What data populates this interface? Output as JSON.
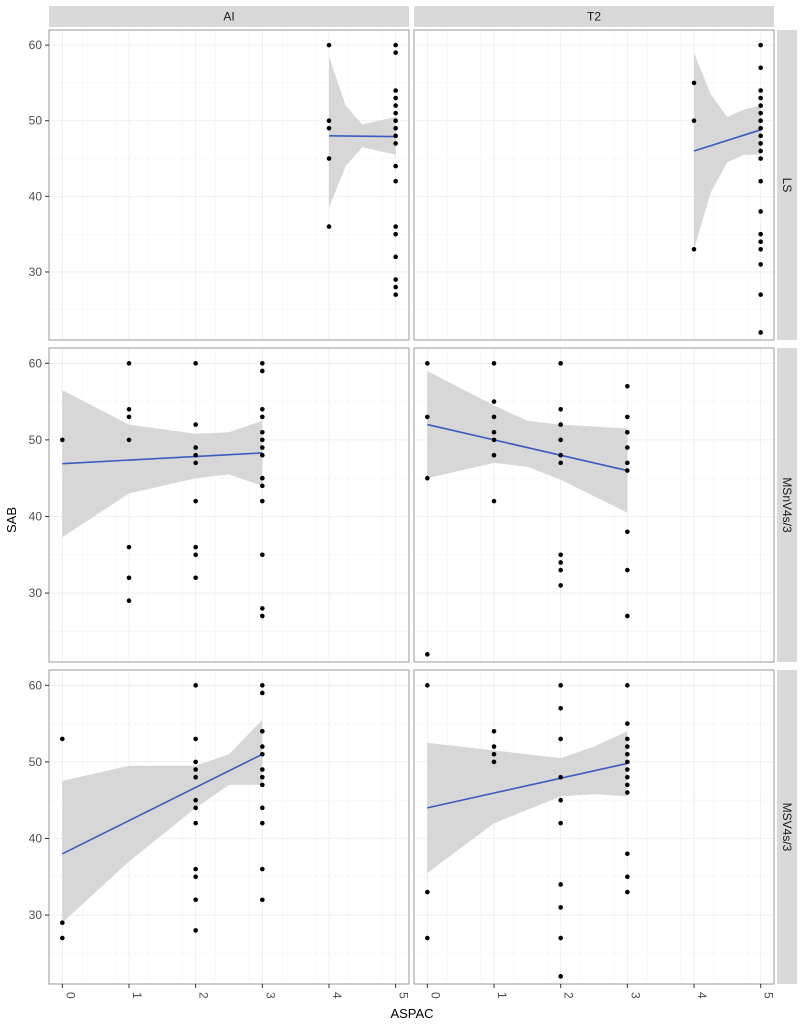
{
  "chart_data": {
    "type": "scatter",
    "subtype": "faceted scatter with linear fit and confidence band",
    "xlabel": "ASPAC",
    "ylabel": "SAB",
    "xlim": [
      -0.2,
      5.2
    ],
    "ylim": [
      21,
      62
    ],
    "x_ticks": [
      0,
      1,
      2,
      3,
      4,
      5
    ],
    "y_ticks": [
      30,
      40,
      50,
      60
    ],
    "col_facets": [
      "AI",
      "T2"
    ],
    "row_facets": [
      "LS",
      "MSnV4s/3",
      "MSV4s/3"
    ],
    "colors": {
      "points": "#000000",
      "fit_line": "#3b5bbf",
      "band": "#d3d3d3",
      "strip": "#d9d9d9",
      "grid": "#ebebeb"
    },
    "panels": [
      {
        "row": "LS",
        "col": "AI",
        "points": [
          [
            4,
            60
          ],
          [
            4,
            50
          ],
          [
            4,
            49
          ],
          [
            4,
            45
          ],
          [
            4,
            36
          ],
          [
            5,
            60
          ],
          [
            5,
            59
          ],
          [
            5,
            54
          ],
          [
            5,
            53
          ],
          [
            5,
            52
          ],
          [
            5,
            51
          ],
          [
            5,
            50
          ],
          [
            5,
            49
          ],
          [
            5,
            48
          ],
          [
            5,
            47
          ],
          [
            5,
            44
          ],
          [
            5,
            42
          ],
          [
            5,
            36
          ],
          [
            5,
            35
          ],
          [
            5,
            32
          ],
          [
            5,
            29
          ],
          [
            5,
            28
          ],
          [
            5,
            27
          ]
        ],
        "fit": [
          [
            4,
            48.0
          ],
          [
            5,
            47.9
          ]
        ],
        "band": [
          [
            4,
            38.5,
            58.5
          ],
          [
            4.25,
            44.0,
            52.0
          ],
          [
            4.5,
            46.5,
            49.5
          ],
          [
            4.75,
            46.0,
            50.0
          ],
          [
            5,
            45.5,
            50.5
          ]
        ]
      },
      {
        "row": "LS",
        "col": "T2",
        "points": [
          [
            4,
            55
          ],
          [
            4,
            50
          ],
          [
            4,
            33
          ],
          [
            5,
            60
          ],
          [
            5,
            57
          ],
          [
            5,
            54
          ],
          [
            5,
            53
          ],
          [
            5,
            52
          ],
          [
            5,
            51
          ],
          [
            5,
            50
          ],
          [
            5,
            49
          ],
          [
            5,
            48
          ],
          [
            5,
            47
          ],
          [
            5,
            46
          ],
          [
            5,
            45
          ],
          [
            5,
            42
          ],
          [
            5,
            38
          ],
          [
            5,
            35
          ],
          [
            5,
            34
          ],
          [
            5,
            33
          ],
          [
            5,
            31
          ],
          [
            5,
            27
          ],
          [
            5,
            22
          ]
        ],
        "fit": [
          [
            4,
            46.0
          ],
          [
            5,
            48.8
          ]
        ],
        "band": [
          [
            4,
            33.0,
            59.0
          ],
          [
            4.25,
            40.5,
            53.5
          ],
          [
            4.5,
            44.5,
            50.5
          ],
          [
            4.75,
            45.5,
            51.5
          ],
          [
            5,
            45.5,
            52.0
          ]
        ]
      },
      {
        "row": "MSnV4s/3",
        "col": "AI",
        "points": [
          [
            0,
            50
          ],
          [
            1,
            60
          ],
          [
            1,
            54
          ],
          [
            1,
            53
          ],
          [
            1,
            50
          ],
          [
            1,
            36
          ],
          [
            1,
            32
          ],
          [
            1,
            29
          ],
          [
            2,
            60
          ],
          [
            2,
            52
          ],
          [
            2,
            49
          ],
          [
            2,
            48
          ],
          [
            2,
            47
          ],
          [
            2,
            42
          ],
          [
            2,
            36
          ],
          [
            2,
            35
          ],
          [
            2,
            32
          ],
          [
            3,
            60
          ],
          [
            3,
            59
          ],
          [
            3,
            54
          ],
          [
            3,
            53
          ],
          [
            3,
            51
          ],
          [
            3,
            50
          ],
          [
            3,
            49
          ],
          [
            3,
            48
          ],
          [
            3,
            45
          ],
          [
            3,
            44
          ],
          [
            3,
            42
          ],
          [
            3,
            35
          ],
          [
            3,
            28
          ],
          [
            3,
            27
          ]
        ],
        "fit": [
          [
            0,
            46.9
          ],
          [
            3,
            48.3
          ]
        ],
        "band": [
          [
            0,
            37.3,
            56.5
          ],
          [
            1,
            43.0,
            52.0
          ],
          [
            2,
            45.0,
            50.8
          ],
          [
            2.5,
            45.5,
            51.0
          ],
          [
            3,
            44.0,
            52.5
          ]
        ]
      },
      {
        "row": "MSnV4s/3",
        "col": "T2",
        "points": [
          [
            0,
            60
          ],
          [
            0,
            53
          ],
          [
            0,
            45
          ],
          [
            0,
            22
          ],
          [
            1,
            60
          ],
          [
            1,
            55
          ],
          [
            1,
            53
          ],
          [
            1,
            51
          ],
          [
            1,
            50
          ],
          [
            1,
            48
          ],
          [
            1,
            42
          ],
          [
            2,
            60
          ],
          [
            2,
            54
          ],
          [
            2,
            52
          ],
          [
            2,
            50
          ],
          [
            2,
            48
          ],
          [
            2,
            47
          ],
          [
            2,
            35
          ],
          [
            2,
            34
          ],
          [
            2,
            33
          ],
          [
            2,
            31
          ],
          [
            3,
            57
          ],
          [
            3,
            53
          ],
          [
            3,
            51
          ],
          [
            3,
            49
          ],
          [
            3,
            47
          ],
          [
            3,
            46
          ],
          [
            3,
            38
          ],
          [
            3,
            33
          ],
          [
            3,
            27
          ]
        ],
        "fit": [
          [
            0,
            52.0
          ],
          [
            3,
            46.0
          ]
        ],
        "band": [
          [
            0,
            45.0,
            59.0
          ],
          [
            1,
            47.0,
            54.5
          ],
          [
            1.5,
            46.5,
            52.5
          ],
          [
            2,
            44.8,
            52.0
          ],
          [
            3,
            40.5,
            51.5
          ]
        ]
      },
      {
        "row": "MSV4s/3",
        "col": "AI",
        "points": [
          [
            0,
            53
          ],
          [
            0,
            29
          ],
          [
            0,
            27
          ],
          [
            2,
            60
          ],
          [
            2,
            53
          ],
          [
            2,
            50
          ],
          [
            2,
            49
          ],
          [
            2,
            48
          ],
          [
            2,
            45
          ],
          [
            2,
            44
          ],
          [
            2,
            42
          ],
          [
            2,
            36
          ],
          [
            2,
            35
          ],
          [
            2,
            32
          ],
          [
            2,
            28
          ],
          [
            3,
            60
          ],
          [
            3,
            59
          ],
          [
            3,
            54
          ],
          [
            3,
            52
          ],
          [
            3,
            51
          ],
          [
            3,
            49
          ],
          [
            3,
            48
          ],
          [
            3,
            47
          ],
          [
            3,
            44
          ],
          [
            3,
            42
          ],
          [
            3,
            36
          ],
          [
            3,
            32
          ]
        ],
        "fit": [
          [
            0,
            38.0
          ],
          [
            3,
            51.0
          ]
        ],
        "band": [
          [
            0,
            29.0,
            47.5
          ],
          [
            1,
            37.0,
            49.5
          ],
          [
            2,
            44.0,
            49.5
          ],
          [
            2.5,
            47.0,
            51.0
          ],
          [
            3,
            47.0,
            55.5
          ]
        ]
      },
      {
        "row": "MSV4s/3",
        "col": "T2",
        "points": [
          [
            0,
            60
          ],
          [
            0,
            33
          ],
          [
            0,
            27
          ],
          [
            1,
            54
          ],
          [
            1,
            52
          ],
          [
            1,
            51
          ],
          [
            1,
            50
          ],
          [
            2,
            60
          ],
          [
            2,
            57
          ],
          [
            2,
            53
          ],
          [
            2,
            48
          ],
          [
            2,
            45
          ],
          [
            2,
            42
          ],
          [
            2,
            34
          ],
          [
            2,
            31
          ],
          [
            2,
            27
          ],
          [
            2,
            22
          ],
          [
            3,
            60
          ],
          [
            3,
            55
          ],
          [
            3,
            53
          ],
          [
            3,
            52
          ],
          [
            3,
            51
          ],
          [
            3,
            50
          ],
          [
            3,
            49
          ],
          [
            3,
            48
          ],
          [
            3,
            47
          ],
          [
            3,
            46
          ],
          [
            3,
            38
          ],
          [
            3,
            35
          ],
          [
            3,
            33
          ]
        ],
        "fit": [
          [
            0,
            44.0
          ],
          [
            3,
            49.8
          ]
        ],
        "band": [
          [
            0,
            35.5,
            52.5
          ],
          [
            1,
            42.0,
            51.5
          ],
          [
            2,
            45.5,
            50.5
          ],
          [
            2.5,
            45.8,
            52.0
          ],
          [
            3,
            45.5,
            54.0
          ]
        ]
      }
    ]
  }
}
